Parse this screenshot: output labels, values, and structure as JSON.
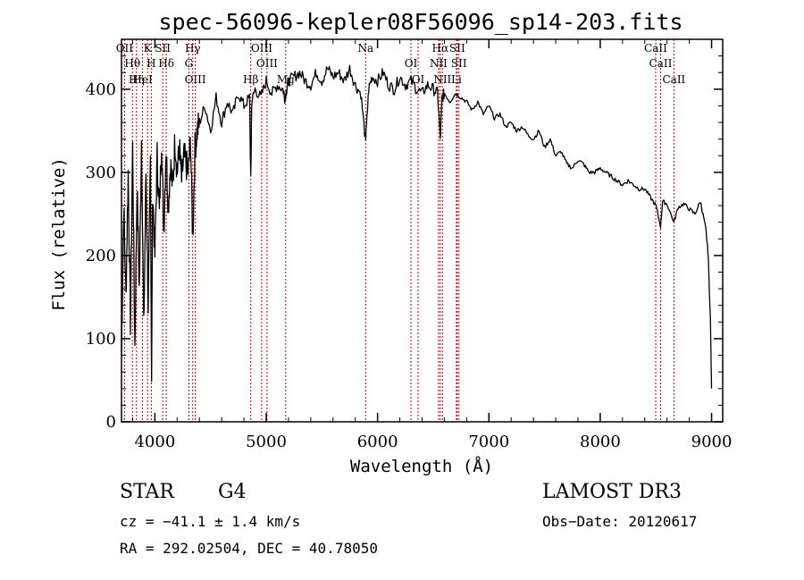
{
  "chart_data": {
    "type": "line",
    "title": "spec-56096-kepler08F56096_sp14-203.fits",
    "xlabel": "Wavelength (Å)",
    "ylabel": "Flux (relative)",
    "xlim": [
      3700,
      9100
    ],
    "ylim": [
      0,
      460
    ],
    "x_ticks": [
      {
        "value": 4000,
        "label": "4000"
      },
      {
        "value": 5000,
        "label": "5000"
      },
      {
        "value": 6000,
        "label": "6000"
      },
      {
        "value": 7000,
        "label": "7000"
      },
      {
        "value": 8000,
        "label": "8000"
      },
      {
        "value": 9000,
        "label": "9000"
      }
    ],
    "y_ticks": [
      {
        "value": 0,
        "label": "0"
      },
      {
        "value": 100,
        "label": "100"
      },
      {
        "value": 200,
        "label": "200"
      },
      {
        "value": 300,
        "label": "300"
      },
      {
        "value": 400,
        "label": "400"
      }
    ],
    "series": [
      {
        "name": "flux",
        "x": [
          3700,
          3720,
          3740,
          3760,
          3780,
          3800,
          3820,
          3840,
          3860,
          3880,
          3900,
          3920,
          3940,
          3960,
          3970,
          3980,
          4000,
          4020,
          4040,
          4060,
          4080,
          4100,
          4120,
          4140,
          4160,
          4180,
          4200,
          4220,
          4240,
          4260,
          4280,
          4300,
          4320,
          4340,
          4360,
          4380,
          4400,
          4450,
          4500,
          4550,
          4600,
          4650,
          4700,
          4750,
          4800,
          4850,
          4861,
          4870,
          4900,
          4950,
          5000,
          5050,
          5100,
          5150,
          5167,
          5183,
          5200,
          5250,
          5300,
          5350,
          5400,
          5450,
          5500,
          5550,
          5600,
          5650,
          5700,
          5750,
          5800,
          5850,
          5890,
          5896,
          5920,
          5950,
          6000,
          6050,
          6100,
          6150,
          6200,
          6250,
          6300,
          6350,
          6400,
          6450,
          6500,
          6540,
          6563,
          6580,
          6600,
          6650,
          6700,
          6750,
          6800,
          6850,
          6900,
          6950,
          7000,
          7050,
          7100,
          7150,
          7200,
          7250,
          7300,
          7350,
          7400,
          7450,
          7500,
          7550,
          7600,
          7650,
          7700,
          7750,
          7800,
          7850,
          7900,
          7950,
          8000,
          8050,
          8100,
          8150,
          8200,
          8250,
          8300,
          8350,
          8400,
          8450,
          8500,
          8542,
          8560,
          8600,
          8662,
          8700,
          8750,
          8800,
          8850,
          8900,
          8930,
          8950,
          8970,
          8990,
          9000
        ],
        "y": [
          80,
          260,
          150,
          300,
          120,
          330,
          90,
          280,
          160,
          340,
          110,
          300,
          140,
          310,
          60,
          280,
          200,
          320,
          250,
          340,
          230,
          330,
          260,
          310,
          280,
          340,
          300,
          330,
          290,
          320,
          310,
          300,
          340,
          220,
          330,
          350,
          360,
          380,
          350,
          390,
          360,
          385,
          370,
          395,
          380,
          390,
          290,
          385,
          400,
          390,
          410,
          395,
          405,
          400,
          390,
          400,
          410,
          415,
          420,
          410,
          405,
          420,
          410,
          425,
          415,
          420,
          410,
          425,
          405,
          395,
          340,
          345,
          400,
          415,
          410,
          420,
          405,
          400,
          415,
          405,
          410,
          400,
          395,
          405,
          400,
          395,
          340,
          390,
          395,
          385,
          395,
          390,
          385,
          375,
          385,
          370,
          380,
          365,
          370,
          355,
          360,
          350,
          355,
          345,
          340,
          350,
          330,
          340,
          320,
          325,
          310,
          305,
          315,
          310,
          300,
          300,
          305,
          300,
          295,
          290,
          285,
          290,
          285,
          280,
          280,
          270,
          260,
          235,
          265,
          262,
          240,
          258,
          262,
          256,
          250,
          265,
          245,
          230,
          200,
          120,
          40
        ]
      }
    ],
    "spectral_lines": [
      {
        "label": "OII",
        "wavelength": 3727
      },
      {
        "label": "Hθ",
        "wavelength": 3798
      },
      {
        "label": "Hη",
        "wavelength": 3835
      },
      {
        "label": "K",
        "wavelength": 3934
      },
      {
        "label": "H",
        "wavelength": 3968
      },
      {
        "label": "HeI",
        "wavelength": 3889
      },
      {
        "label": "SII",
        "wavelength": 4070
      },
      {
        "label": "Hδ",
        "wavelength": 4102
      },
      {
        "label": "OIII",
        "wavelength": 4363
      },
      {
        "label": "Hγ",
        "wavelength": 4340
      },
      {
        "label": "G",
        "wavelength": 4305
      },
      {
        "label": "Hβ",
        "wavelength": 4861
      },
      {
        "label": "OIII",
        "wavelength": 4959
      },
      {
        "label": "OIII",
        "wavelength": 5007
      },
      {
        "label": "Mg",
        "wavelength": 5175
      },
      {
        "label": "Na",
        "wavelength": 5893
      },
      {
        "label": "OI",
        "wavelength": 6300
      },
      {
        "label": "OI",
        "wavelength": 6364
      },
      {
        "label": "Hα",
        "wavelength": 6563
      },
      {
        "label": "NII",
        "wavelength": 6548
      },
      {
        "label": "NII",
        "wavelength": 6583
      },
      {
        "label": "SII",
        "wavelength": 6716
      },
      {
        "label": "SII",
        "wavelength": 6731
      },
      {
        "label": "Li",
        "wavelength": 6708
      },
      {
        "label": "CaII",
        "wavelength": 8498
      },
      {
        "label": "CaII",
        "wavelength": 8542
      },
      {
        "label": "CaII",
        "wavelength": 8662
      }
    ],
    "line_color": "#000000",
    "marker_color": "#cc0000"
  },
  "info": {
    "object_class": "STAR",
    "subclass": "G4",
    "survey": "LAMOST DR3",
    "redshift": "cz = −41.1 ± 1.4 km/s",
    "obs_date": "Obs−Date: 20120617",
    "coords": "RA = 292.02504, DEC =  40.78050"
  }
}
